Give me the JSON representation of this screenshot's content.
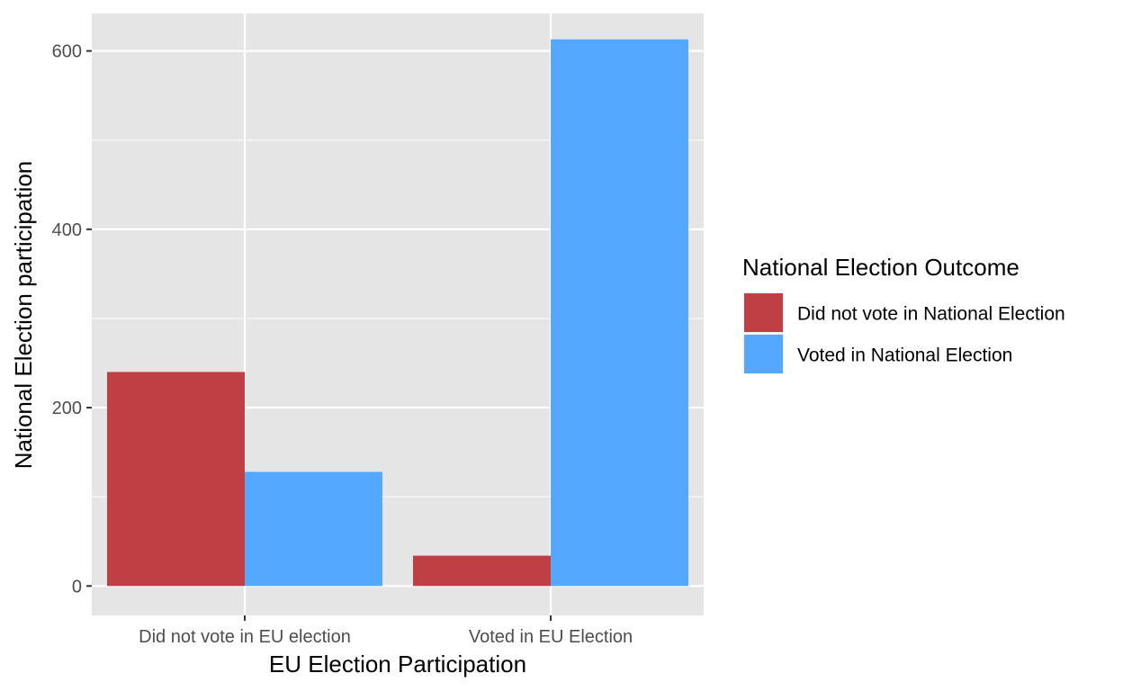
{
  "chart_data": {
    "type": "bar",
    "barmode": "dodge",
    "categories": [
      "Did not vote in EU election",
      "Voted in EU Election"
    ],
    "series": [
      {
        "name": "Did not vote in National Election",
        "color": "#c03f45",
        "values": [
          240,
          34
        ]
      },
      {
        "name": "Voted in National Election",
        "color": "#54a8ff",
        "values": [
          128,
          613
        ]
      }
    ],
    "xlabel": "EU Election Participation",
    "ylabel": "National Election participation",
    "ylim": [
      -33,
      642
    ],
    "yticks": [
      0,
      200,
      400,
      600
    ],
    "grid": true,
    "legend": {
      "title": "National Election Outcome",
      "placement": "right"
    },
    "panel_background": "#e5e5e5"
  }
}
